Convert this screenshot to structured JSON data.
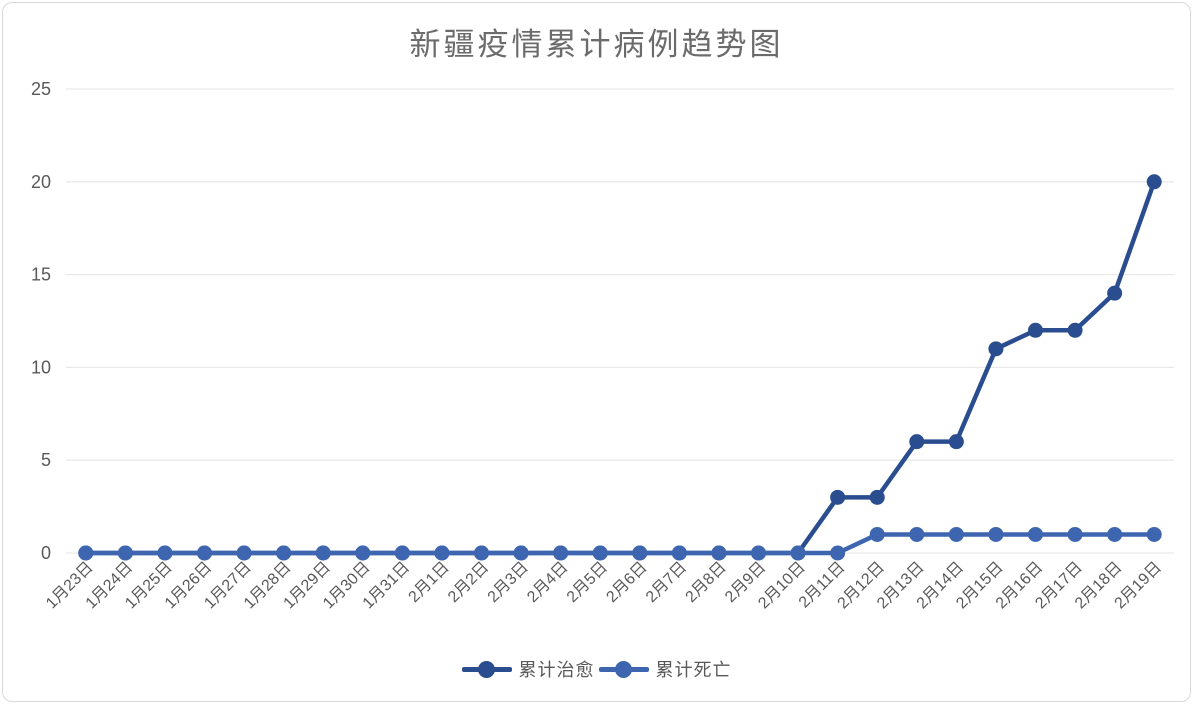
{
  "chart_data": {
    "type": "line",
    "title": "新疆疫情累计病例趋势图",
    "xlabel": "",
    "ylabel": "",
    "categories": [
      "1月23日",
      "1月24日",
      "1月25日",
      "1月26日",
      "1月27日",
      "1月28日",
      "1月29日",
      "1月30日",
      "1月31日",
      "2月1日",
      "2月2日",
      "2月3日",
      "2月4日",
      "2月5日",
      "2月6日",
      "2月7日",
      "2月8日",
      "2月9日",
      "2月10日",
      "2月11日",
      "2月12日",
      "2月13日",
      "2月14日",
      "2月15日",
      "2月16日",
      "2月17日",
      "2月18日",
      "2月19日"
    ],
    "series": [
      {
        "name": "累计治愈",
        "color": "#2A4D8F",
        "values": [
          0,
          0,
          0,
          0,
          0,
          0,
          0,
          0,
          0,
          0,
          0,
          0,
          0,
          0,
          0,
          0,
          0,
          0,
          0,
          3,
          3,
          6,
          6,
          11,
          12,
          12,
          14,
          20
        ]
      },
      {
        "name": "累计死亡",
        "color": "#3E66B0",
        "values": [
          0,
          0,
          0,
          0,
          0,
          0,
          0,
          0,
          0,
          0,
          0,
          0,
          0,
          0,
          0,
          0,
          0,
          0,
          0,
          0,
          1,
          1,
          1,
          1,
          1,
          1,
          1,
          1
        ]
      }
    ],
    "ylim": [
      0,
      25
    ],
    "yticks": [
      0,
      5,
      10,
      15,
      20,
      25
    ],
    "grid": "horizontal",
    "legend_position": "bottom"
  },
  "style": {
    "grid_color": "#e9e9e9",
    "axis_label_color": "#595959",
    "title_color": "#6b6b6b",
    "card_border_color": "#d9d9d9",
    "background": "#ffffff"
  }
}
